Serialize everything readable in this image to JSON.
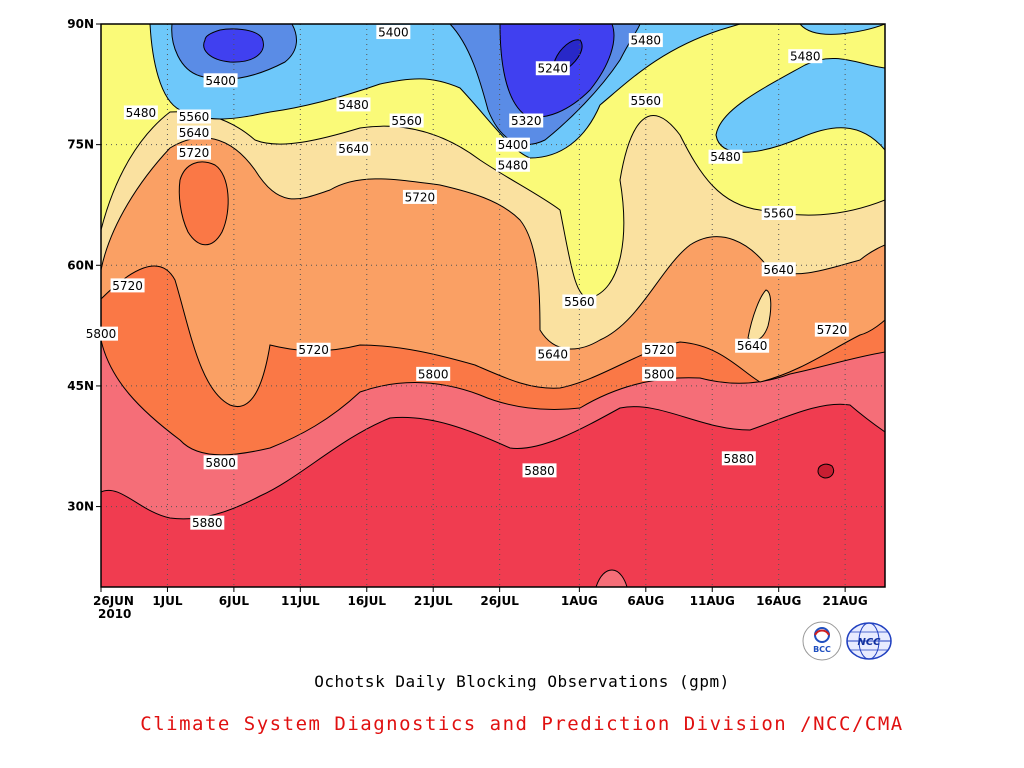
{
  "chart_data": {
    "type": "heatmap",
    "subtype": "filled-contour",
    "title": "Ochotsk Daily Blocking Observations (gpm)",
    "credit": "Climate System Diagnostics and Prediction Division /NCC/CMA",
    "x_axis": {
      "type": "date",
      "range": [
        "2010-06-26",
        "2010-08-24"
      ],
      "ticks": [
        "26JUN",
        "1JUL",
        "6JUL",
        "11JUL",
        "16JUL",
        "21JUL",
        "26JUL",
        "1AUG",
        "6AUG",
        "11AUG",
        "16AUG",
        "21AUG"
      ],
      "year_label": "2010"
    },
    "y_axis": {
      "range": [
        20,
        90
      ],
      "ticks": [
        "30N",
        "45N",
        "60N",
        "75N",
        "90N"
      ]
    },
    "grid": "dotted",
    "contour_levels": [
      5240,
      5320,
      5400,
      5480,
      5560,
      5640,
      5720,
      5800,
      5880,
      5960
    ],
    "level_colors": [
      "#2828c8",
      "#4040f0",
      "#5a8ce6",
      "#6ec8fa",
      "#fafa78",
      "#fae1a0",
      "#faa064",
      "#fa7846",
      "#f56e78",
      "#f03c50",
      "#c81e32"
    ],
    "contour_labels": [
      {
        "text": "5400",
        "date": "2010-07-18",
        "lat": 89
      },
      {
        "text": "5480",
        "date": "2010-08-06",
        "lat": 88
      },
      {
        "text": "5480",
        "date": "2010-08-18",
        "lat": 86
      },
      {
        "text": "5400",
        "date": "2010-07-05",
        "lat": 83
      },
      {
        "text": "5240",
        "date": "2010-07-30",
        "lat": 84.5
      },
      {
        "text": "5480",
        "date": "2010-07-15",
        "lat": 80
      },
      {
        "text": "5480",
        "date": "2010-06-29",
        "lat": 79
      },
      {
        "text": "5560",
        "date": "2010-07-03",
        "lat": 78.5
      },
      {
        "text": "5560",
        "date": "2010-07-19",
        "lat": 78
      },
      {
        "text": "5320",
        "date": "2010-07-28",
        "lat": 78
      },
      {
        "text": "5560",
        "date": "2010-08-06",
        "lat": 80.5
      },
      {
        "text": "5640",
        "date": "2010-07-03",
        "lat": 76.5
      },
      {
        "text": "5640",
        "date": "2010-07-15",
        "lat": 74.5
      },
      {
        "text": "5400",
        "date": "2010-07-27",
        "lat": 75
      },
      {
        "text": "5720",
        "date": "2010-07-03",
        "lat": 74
      },
      {
        "text": "5480",
        "date": "2010-07-27",
        "lat": 72.5
      },
      {
        "text": "5480",
        "date": "2010-08-12",
        "lat": 73.5
      },
      {
        "text": "5720",
        "date": "2010-07-20",
        "lat": 68.5
      },
      {
        "text": "5560",
        "date": "2010-08-16",
        "lat": 66.5
      },
      {
        "text": "5720",
        "date": "2010-06-28",
        "lat": 57.5
      },
      {
        "text": "5640",
        "date": "2010-08-16",
        "lat": 59.5
      },
      {
        "text": "5560",
        "date": "2010-08-01",
        "lat": 55.5
      },
      {
        "text": "5800",
        "date": "2010-06-26",
        "lat": 51.5
      },
      {
        "text": "5720",
        "date": "2010-08-20",
        "lat": 52
      },
      {
        "text": "5720",
        "date": "2010-07-12",
        "lat": 49.5
      },
      {
        "text": "5640",
        "date": "2010-07-30",
        "lat": 49
      },
      {
        "text": "5720",
        "date": "2010-08-07",
        "lat": 49.5
      },
      {
        "text": "5640",
        "date": "2010-08-14",
        "lat": 50
      },
      {
        "text": "5800",
        "date": "2010-07-21",
        "lat": 46.5
      },
      {
        "text": "5800",
        "date": "2010-08-07",
        "lat": 46.5
      },
      {
        "text": "5800",
        "date": "2010-07-05",
        "lat": 35.5
      },
      {
        "text": "5880",
        "date": "2010-07-29",
        "lat": 34.5
      },
      {
        "text": "5880",
        "date": "2010-08-13",
        "lat": 36
      },
      {
        "text": "5880",
        "date": "2010-07-04",
        "lat": 28
      }
    ]
  },
  "logos": {
    "left": {
      "text": "BCC",
      "icon": "bcc-logo-icon"
    },
    "right": {
      "text": "NCC",
      "icon": "ncc-globe-logo-icon"
    }
  }
}
